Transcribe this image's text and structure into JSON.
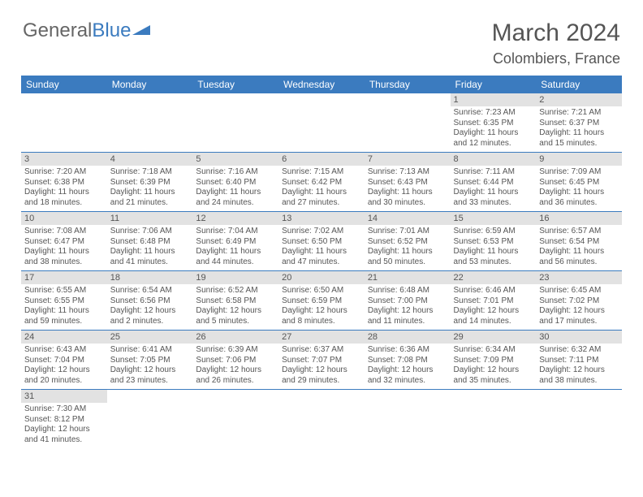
{
  "logo": {
    "text1": "General",
    "text2": "Blue"
  },
  "title": "March 2024",
  "location": "Colombiers, France",
  "colors": {
    "accent": "#3b7bbf",
    "daynum_bg": "#e2e2e2",
    "text": "#555555",
    "background": "#ffffff"
  },
  "weekdays": [
    "Sunday",
    "Monday",
    "Tuesday",
    "Wednesday",
    "Thursday",
    "Friday",
    "Saturday"
  ],
  "weeks": [
    [
      null,
      null,
      null,
      null,
      null,
      {
        "n": "1",
        "sr": "7:23 AM",
        "ss": "6:35 PM",
        "dl": "11 hours and 12 minutes."
      },
      {
        "n": "2",
        "sr": "7:21 AM",
        "ss": "6:37 PM",
        "dl": "11 hours and 15 minutes."
      }
    ],
    [
      {
        "n": "3",
        "sr": "7:20 AM",
        "ss": "6:38 PM",
        "dl": "11 hours and 18 minutes."
      },
      {
        "n": "4",
        "sr": "7:18 AM",
        "ss": "6:39 PM",
        "dl": "11 hours and 21 minutes."
      },
      {
        "n": "5",
        "sr": "7:16 AM",
        "ss": "6:40 PM",
        "dl": "11 hours and 24 minutes."
      },
      {
        "n": "6",
        "sr": "7:15 AM",
        "ss": "6:42 PM",
        "dl": "11 hours and 27 minutes."
      },
      {
        "n": "7",
        "sr": "7:13 AM",
        "ss": "6:43 PM",
        "dl": "11 hours and 30 minutes."
      },
      {
        "n": "8",
        "sr": "7:11 AM",
        "ss": "6:44 PM",
        "dl": "11 hours and 33 minutes."
      },
      {
        "n": "9",
        "sr": "7:09 AM",
        "ss": "6:45 PM",
        "dl": "11 hours and 36 minutes."
      }
    ],
    [
      {
        "n": "10",
        "sr": "7:08 AM",
        "ss": "6:47 PM",
        "dl": "11 hours and 38 minutes."
      },
      {
        "n": "11",
        "sr": "7:06 AM",
        "ss": "6:48 PM",
        "dl": "11 hours and 41 minutes."
      },
      {
        "n": "12",
        "sr": "7:04 AM",
        "ss": "6:49 PM",
        "dl": "11 hours and 44 minutes."
      },
      {
        "n": "13",
        "sr": "7:02 AM",
        "ss": "6:50 PM",
        "dl": "11 hours and 47 minutes."
      },
      {
        "n": "14",
        "sr": "7:01 AM",
        "ss": "6:52 PM",
        "dl": "11 hours and 50 minutes."
      },
      {
        "n": "15",
        "sr": "6:59 AM",
        "ss": "6:53 PM",
        "dl": "11 hours and 53 minutes."
      },
      {
        "n": "16",
        "sr": "6:57 AM",
        "ss": "6:54 PM",
        "dl": "11 hours and 56 minutes."
      }
    ],
    [
      {
        "n": "17",
        "sr": "6:55 AM",
        "ss": "6:55 PM",
        "dl": "11 hours and 59 minutes."
      },
      {
        "n": "18",
        "sr": "6:54 AM",
        "ss": "6:56 PM",
        "dl": "12 hours and 2 minutes."
      },
      {
        "n": "19",
        "sr": "6:52 AM",
        "ss": "6:58 PM",
        "dl": "12 hours and 5 minutes."
      },
      {
        "n": "20",
        "sr": "6:50 AM",
        "ss": "6:59 PM",
        "dl": "12 hours and 8 minutes."
      },
      {
        "n": "21",
        "sr": "6:48 AM",
        "ss": "7:00 PM",
        "dl": "12 hours and 11 minutes."
      },
      {
        "n": "22",
        "sr": "6:46 AM",
        "ss": "7:01 PM",
        "dl": "12 hours and 14 minutes."
      },
      {
        "n": "23",
        "sr": "6:45 AM",
        "ss": "7:02 PM",
        "dl": "12 hours and 17 minutes."
      }
    ],
    [
      {
        "n": "24",
        "sr": "6:43 AM",
        "ss": "7:04 PM",
        "dl": "12 hours and 20 minutes."
      },
      {
        "n": "25",
        "sr": "6:41 AM",
        "ss": "7:05 PM",
        "dl": "12 hours and 23 minutes."
      },
      {
        "n": "26",
        "sr": "6:39 AM",
        "ss": "7:06 PM",
        "dl": "12 hours and 26 minutes."
      },
      {
        "n": "27",
        "sr": "6:37 AM",
        "ss": "7:07 PM",
        "dl": "12 hours and 29 minutes."
      },
      {
        "n": "28",
        "sr": "6:36 AM",
        "ss": "7:08 PM",
        "dl": "12 hours and 32 minutes."
      },
      {
        "n": "29",
        "sr": "6:34 AM",
        "ss": "7:09 PM",
        "dl": "12 hours and 35 minutes."
      },
      {
        "n": "30",
        "sr": "6:32 AM",
        "ss": "7:11 PM",
        "dl": "12 hours and 38 minutes."
      }
    ],
    [
      {
        "n": "31",
        "sr": "7:30 AM",
        "ss": "8:12 PM",
        "dl": "12 hours and 41 minutes."
      },
      null,
      null,
      null,
      null,
      null,
      null
    ]
  ],
  "labels": {
    "sunrise": "Sunrise:",
    "sunset": "Sunset:",
    "daylight": "Daylight:"
  }
}
